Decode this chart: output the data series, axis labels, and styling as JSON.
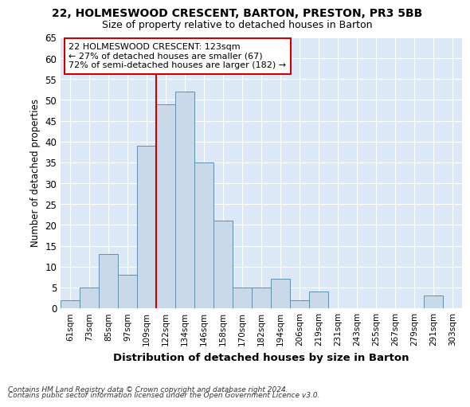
{
  "title": "22, HOLMESWOOD CRESCENT, BARTON, PRESTON, PR3 5BB",
  "subtitle": "Size of property relative to detached houses in Barton",
  "xlabel": "Distribution of detached houses by size in Barton",
  "ylabel": "Number of detached properties",
  "categories": [
    "61sqm",
    "73sqm",
    "85sqm",
    "97sqm",
    "109sqm",
    "122sqm",
    "134sqm",
    "146sqm",
    "158sqm",
    "170sqm",
    "182sqm",
    "194sqm",
    "206sqm",
    "219sqm",
    "231sqm",
    "243sqm",
    "255sqm",
    "267sqm",
    "279sqm",
    "291sqm",
    "303sqm"
  ],
  "values": [
    2,
    5,
    13,
    8,
    39,
    49,
    52,
    35,
    21,
    5,
    5,
    7,
    2,
    4,
    0,
    0,
    0,
    0,
    0,
    3,
    0
  ],
  "bar_color": "#c9d9ea",
  "bar_edge_color": "#6090b0",
  "plot_bg_color": "#dce8f5",
  "fig_bg_color": "#ffffff",
  "grid_color": "#ffffff",
  "annotation_box_text": "22 HOLMESWOOD CRESCENT: 123sqm\n← 27% of detached houses are smaller (67)\n72% of semi-detached houses are larger (182) →",
  "vline_x_index": 5,
  "ylim": [
    0,
    65
  ],
  "yticks": [
    0,
    5,
    10,
    15,
    20,
    25,
    30,
    35,
    40,
    45,
    50,
    55,
    60,
    65
  ],
  "footer_line1": "Contains HM Land Registry data © Crown copyright and database right 2024.",
  "footer_line2": "Contains public sector information licensed under the Open Government Licence v3.0.",
  "vline_color": "#cc0000",
  "annotation_box_color": "#ffffff",
  "annotation_box_edge_color": "#cc0000"
}
